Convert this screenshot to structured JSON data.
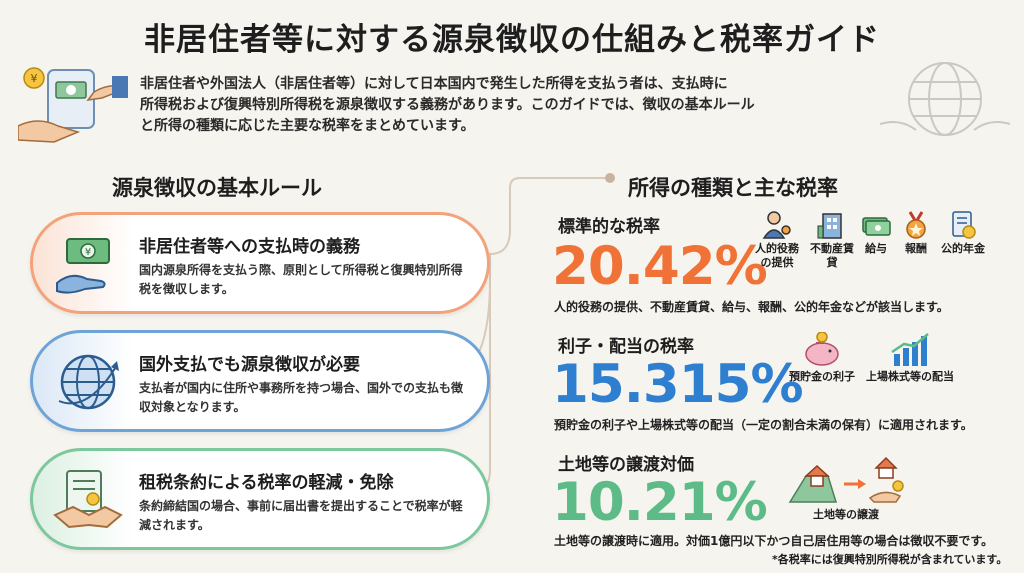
{
  "title": "非居住者等に対する源泉徴収の仕組みと税率ガイド",
  "intro": [
    "非居住者や外国法人（非居住者等）に対して日本国内で発生した所得を支払う者は、支払時に",
    "所得税および復興特別所得税を源泉徴収する義務があります。このガイドでは、徴収の基本ルール",
    "と所得の種類に応じた主要な税率をまとめています。"
  ],
  "left_section": {
    "title": "源泉徴収の基本ルール",
    "cards": [
      {
        "head": "非居住者等への支払時の義務",
        "body": "国内源泉所得を支払う際、原則として所得税と復興特別所得税を徴収します。"
      },
      {
        "head": "国外支払でも源泉徴収が必要",
        "body": "支払者が国内に住所や事務所を持つ場合、国外での支払も徴収対象となります。"
      },
      {
        "head": "租税条約による税率の軽減・免除",
        "body": "条約締結国の場合、事前に届出書を提出することで税率が軽減されます。"
      }
    ]
  },
  "right_section": {
    "title": "所得の種類と主な税率",
    "rates": [
      {
        "title": "標準的な税率",
        "value": "20.42%",
        "note": "人的役務の提供、不動産賃貸、給与、報酬、公的年金などが該当します。",
        "items": [
          "人的役務\nの提供",
          "不動産賃\n貸",
          "給与",
          "報酬",
          "公的年金"
        ]
      },
      {
        "title": "利子・配当の税率",
        "value": "15.315%",
        "note": "預貯金の利子や上場株式等の配当（一定の割合未満の保有）に適用されます。",
        "items": [
          "預貯金の利子",
          "上場株式等の配当"
        ]
      },
      {
        "title": "土地等の譲渡対価",
        "value": "10.21%",
        "note": "土地等の譲渡時に適用。対価1億円以下かつ自己居住用等の場合は徴収不要です。",
        "items": [
          "土地等の譲渡"
        ]
      }
    ]
  },
  "footnote": "*各税率には復興特別所得税が含まれています。",
  "colors": {
    "orange": "#f07236",
    "blue": "#2e7fcf",
    "green": "#5dbb87"
  },
  "icons": [
    "money-hand-icon",
    "globe-icon",
    "contract-handshake-icon",
    "person-gear-icon",
    "building-icon",
    "cash-icon",
    "medal-icon",
    "pension-doc-icon",
    "piggy-bank-icon",
    "bar-chart-up-icon",
    "land-icon",
    "house-hand-icon"
  ]
}
